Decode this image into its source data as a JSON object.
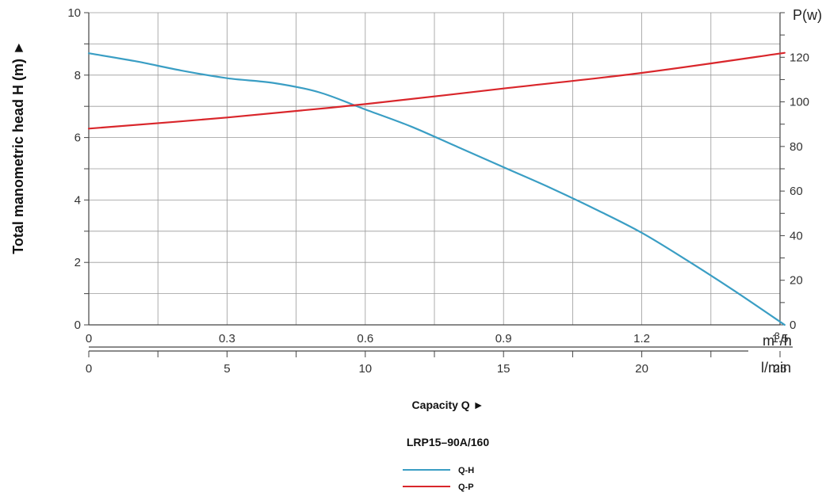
{
  "chart_data": {
    "type": "line",
    "title": "LRP15–90A/160",
    "xlabel": "Capacity Q ►",
    "ylabel": "Total manometric head H (m) ►",
    "y2label": "P(w)",
    "x_unit_primary": "m³/h",
    "x_unit_primary_base": "m",
    "x_unit_primary_exp": "3",
    "x_unit_primary_tail": "/h",
    "x_unit_secondary": "l/min",
    "xlim": [
      0,
      1.5
    ],
    "ylim": [
      0,
      10
    ],
    "y2lim": [
      0,
      140
    ],
    "x_ticks": [
      "0",
      "0.3",
      "0.6",
      "0.9",
      "1.2",
      "1.5"
    ],
    "x_tick_values": [
      0,
      0.3,
      0.6,
      0.9,
      1.2,
      1.5
    ],
    "x2_ticks": [
      "0",
      "5",
      "10",
      "15",
      "20",
      "25"
    ],
    "x2_tick_values": [
      0,
      5,
      10,
      15,
      20,
      25
    ],
    "y_ticks": [
      "0",
      "2",
      "4",
      "6",
      "8",
      "10"
    ],
    "y2_ticks": [
      "0",
      "20",
      "40",
      "60",
      "80",
      "100",
      "120"
    ],
    "grid": true,
    "legend_position": "bottom-center",
    "series": [
      {
        "name": "Q-H",
        "axis": "left",
        "color": "#3a9ec4",
        "x": [
          0,
          0.1,
          0.2,
          0.3,
          0.4,
          0.5,
          0.6,
          0.7,
          0.8,
          0.9,
          1.0,
          1.1,
          1.2,
          1.3,
          1.4,
          1.51
        ],
        "y": [
          8.7,
          8.45,
          8.15,
          7.9,
          7.75,
          7.45,
          6.9,
          6.35,
          5.7,
          5.05,
          4.4,
          3.7,
          2.95,
          2.05,
          1.1,
          0.0
        ]
      },
      {
        "name": "Q-P",
        "axis": "right",
        "color": "#d9262b",
        "x": [
          0,
          0.3,
          0.6,
          0.9,
          1.2,
          1.51
        ],
        "y": [
          88,
          93,
          99,
          106,
          113,
          122
        ]
      }
    ]
  }
}
